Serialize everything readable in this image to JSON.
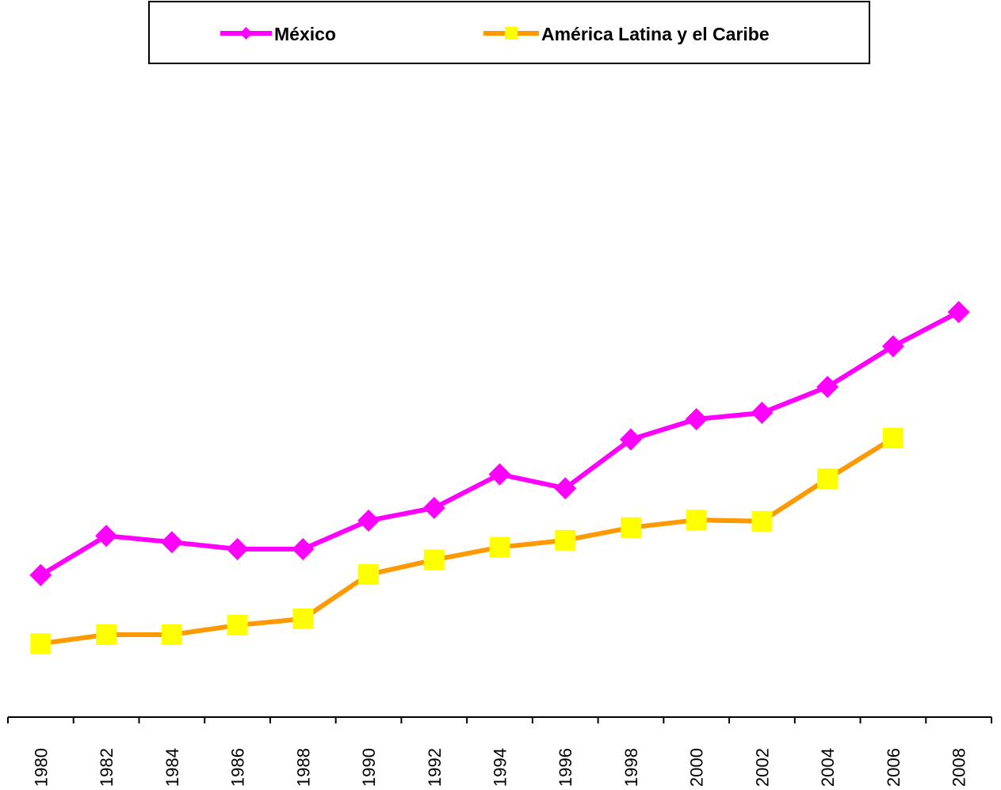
{
  "chart_data": {
    "type": "line",
    "categories": [
      "1980",
      "1982",
      "1984",
      "1986",
      "1988",
      "1990",
      "1992",
      "1994",
      "1996",
      "1998",
      "2000",
      "2002",
      "2004",
      "2006",
      "2008"
    ],
    "series": [
      {
        "name": "México",
        "color": "#ff00ff",
        "marker_color": "#ff00ff",
        "marker": "diamond",
        "values": [
          22.4,
          28.6,
          27.6,
          26.5,
          26.5,
          31.0,
          33.0,
          38.3,
          36.1,
          43.8,
          47.0,
          48.0,
          52.1,
          58.5,
          63.9
        ]
      },
      {
        "name": "América Latina y el Caribe",
        "color": "#ff9900",
        "marker_color": "#ffff00",
        "marker": "square",
        "values": [
          11.6,
          13.0,
          13.0,
          14.5,
          15.5,
          22.5,
          24.8,
          26.8,
          27.9,
          29.9,
          31.1,
          30.9,
          37.6,
          44.0,
          null
        ]
      }
    ],
    "ylim": [
      0,
      100
    ],
    "legend": "top"
  }
}
